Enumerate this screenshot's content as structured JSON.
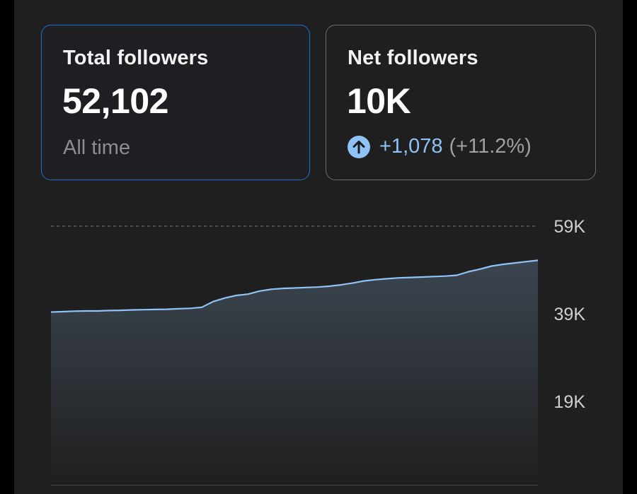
{
  "cards": {
    "total": {
      "title": "Total followers",
      "value": "52,102",
      "subtitle": "All time"
    },
    "net": {
      "title": "Net followers",
      "value": "10K",
      "change_abs": "+1,078",
      "change_pct": "(+11.2%)"
    }
  },
  "colors": {
    "accent": "#8fc3f7",
    "selected_border": "#1d6ed0",
    "background": "#1f1f1f"
  },
  "icons": {
    "change": "arrow-up-circle-icon"
  },
  "chart_data": {
    "type": "area",
    "y_ticks": [
      {
        "label": "59K",
        "value": 59000
      },
      {
        "label": "39K",
        "value": 39000
      },
      {
        "label": "19K",
        "value": 19000
      }
    ],
    "ylim": [
      0,
      59000
    ],
    "grid": true,
    "series": [
      {
        "values": [
          39400,
          39500,
          39600,
          39650,
          39650,
          39750,
          39800,
          39900,
          39950,
          40000,
          40050,
          40150,
          40250,
          40500,
          41800,
          42600,
          43200,
          43500,
          44200,
          44600,
          44800,
          44900,
          45000,
          45100,
          45300,
          45600,
          46000,
          46500,
          46800,
          47000,
          47200,
          47300,
          47400,
          47500,
          47600,
          47800,
          48600,
          49200,
          49900,
          50300,
          50600,
          50900,
          51200
        ]
      }
    ]
  }
}
